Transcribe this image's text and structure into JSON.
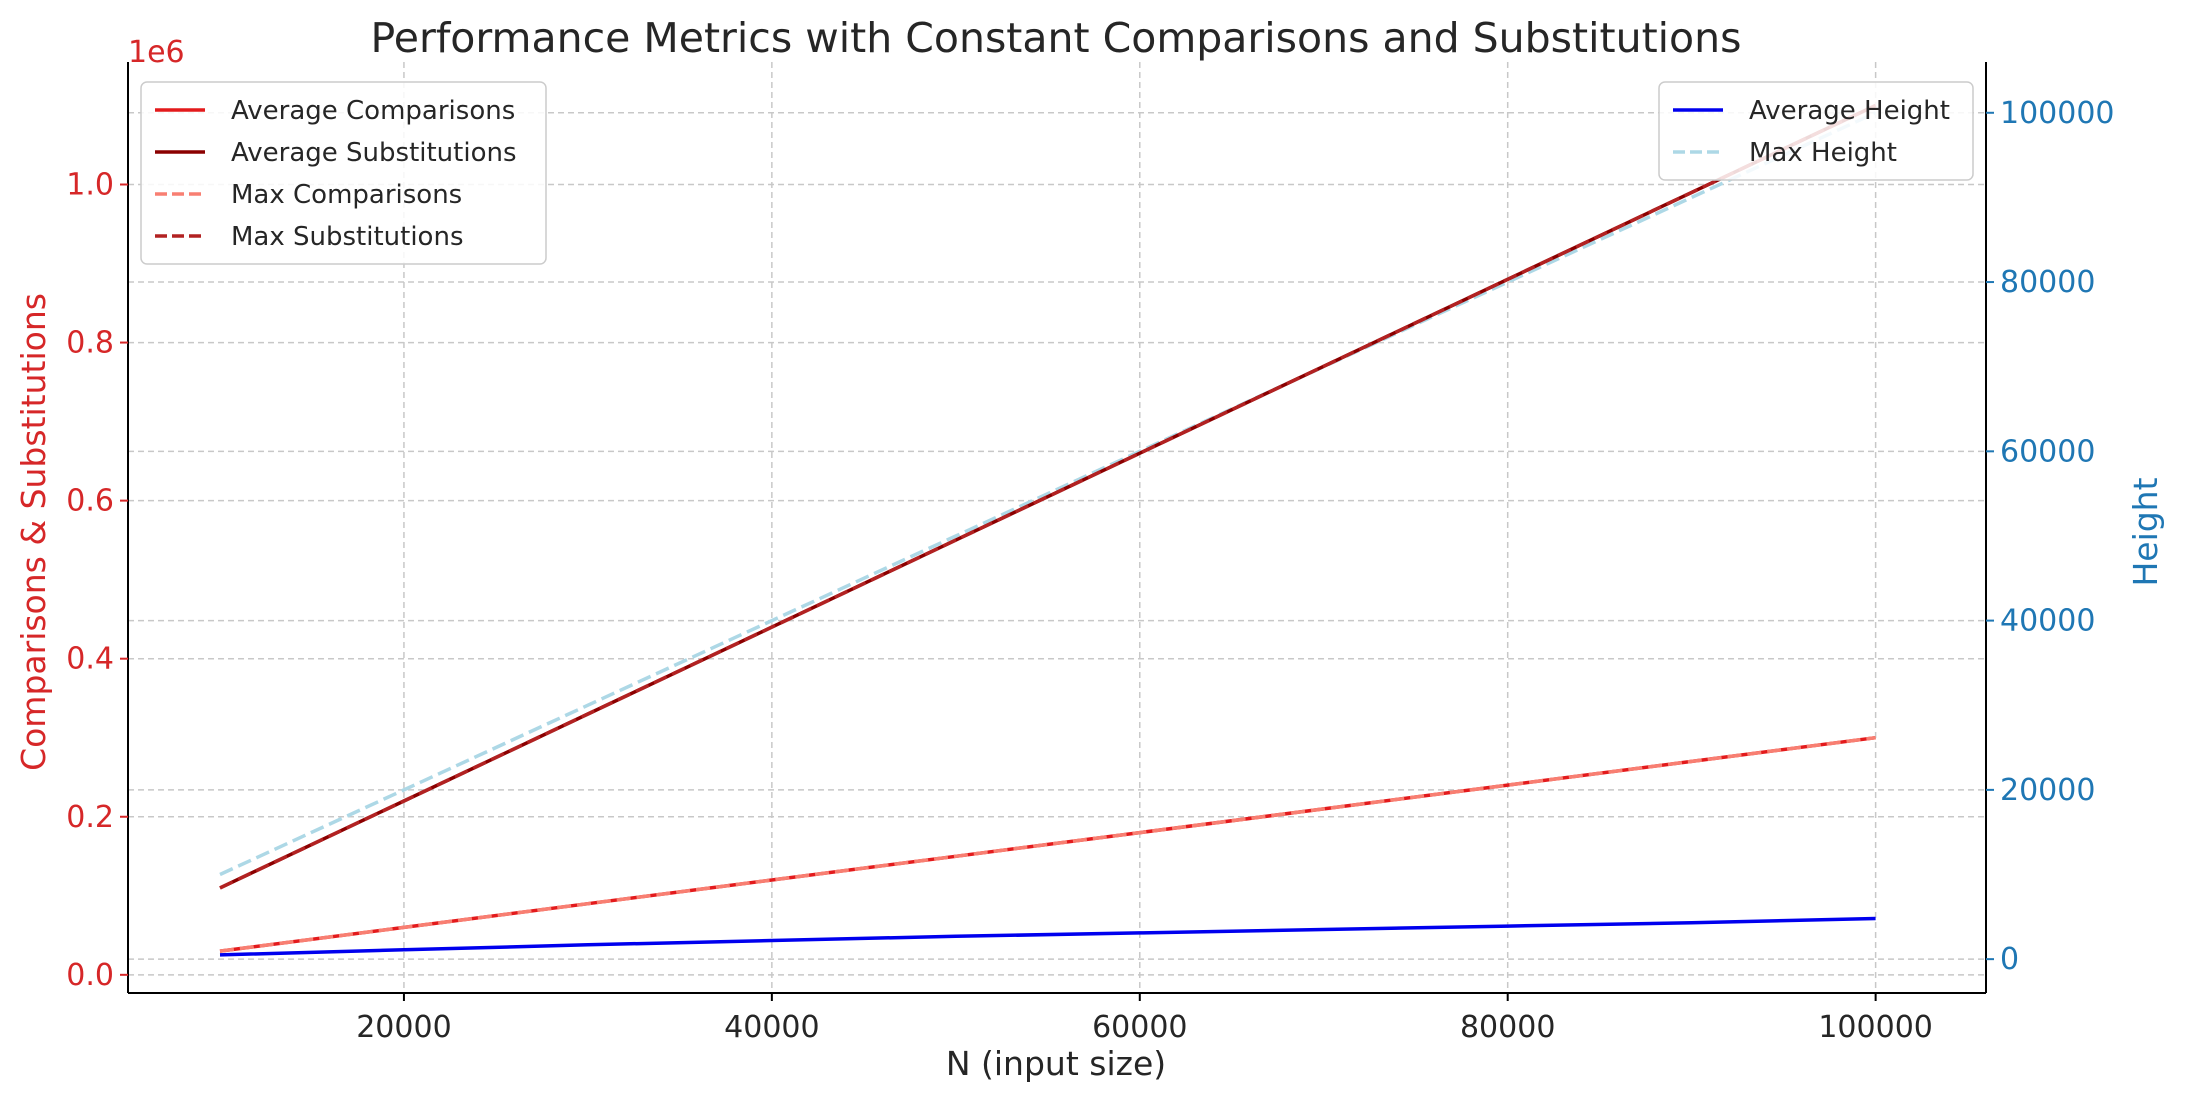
{
  "chart_data": {
    "type": "line",
    "title": "Performance Metrics with Constant Comparisons and Substitutions",
    "xlabel": "N (input size)",
    "ylabel_left": "Comparisons & Substitutions",
    "ylabel_right": "Height",
    "left_axis_multiplier": "1e6",
    "xlim": [
      5000,
      106000
    ],
    "ylim_left": [
      -0.023,
      1.155
    ],
    "ylim_right": [
      -4000,
      106000
    ],
    "x_ticks": [
      20000,
      40000,
      60000,
      80000,
      100000
    ],
    "y_ticks_left": [
      0.0,
      0.2,
      0.4,
      0.6,
      0.8,
      1.0
    ],
    "y_ticks_right": [
      0,
      20000,
      40000,
      60000,
      80000,
      100000
    ],
    "grid": true,
    "x": [
      10000,
      20000,
      30000,
      40000,
      50000,
      60000,
      70000,
      80000,
      90000,
      100000
    ],
    "series_left": [
      {
        "name": "Average Comparisons",
        "color": "#e31a1c",
        "style": "solid",
        "values": [
          0.03,
          0.06,
          0.09,
          0.12,
          0.15,
          0.18,
          0.21,
          0.24,
          0.27,
          0.3
        ]
      },
      {
        "name": "Average Substitutions",
        "color": "#8b0000",
        "style": "solid",
        "values": [
          0.11,
          0.22,
          0.33,
          0.44,
          0.55,
          0.66,
          0.77,
          0.88,
          0.99,
          1.1
        ]
      },
      {
        "name": "Max Comparisons",
        "color": "#f87f72",
        "style": "dashed",
        "values": [
          0.03,
          0.06,
          0.09,
          0.12,
          0.15,
          0.18,
          0.21,
          0.24,
          0.27,
          0.3
        ]
      },
      {
        "name": "Max Substitutions",
        "color": "#b22222",
        "style": "dashed",
        "values": [
          0.11,
          0.22,
          0.33,
          0.44,
          0.55,
          0.66,
          0.77,
          0.88,
          0.99,
          1.1
        ]
      }
    ],
    "series_right": [
      {
        "name": "Average Height",
        "color": "#0000ee",
        "style": "solid",
        "values": [
          500,
          1100,
          1700,
          2200,
          2700,
          3100,
          3500,
          3900,
          4300,
          4800
        ]
      },
      {
        "name": "Max Height",
        "color": "#add8e6",
        "style": "dashed",
        "values": [
          10000,
          20000,
          30000,
          40000,
          50000,
          60000,
          70000,
          80000,
          90000,
          100000
        ]
      }
    ],
    "legend_left": "top-left",
    "legend_right": "top-right",
    "colors": {
      "left_axis": "#d62728",
      "right_axis": "#1f77b4",
      "grid": "#c8c8c8",
      "text": "#262626"
    }
  }
}
